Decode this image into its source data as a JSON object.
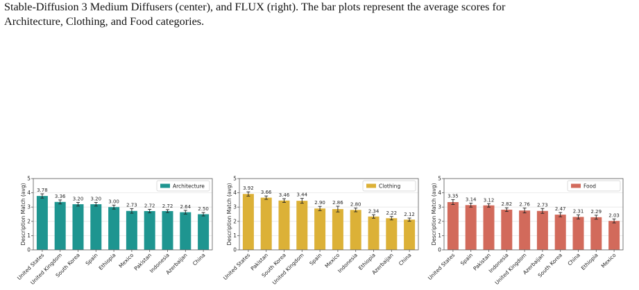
{
  "caption": {
    "line1": "Stable-Diffusion 3 Medium Diffusers (center), and FLUX (right). The bar plots represent the average scores for",
    "line2": "Architecture, Clothing, and Food categories."
  },
  "colors": {
    "architecture": "#1e9590",
    "clothing": "#dcb137",
    "food": "#d26a5b",
    "grid": "#e6e6e6",
    "axis": "#555555"
  },
  "chart_data": [
    {
      "type": "bar",
      "title": "",
      "ylabel": "Description Match (avg)",
      "xlabel": "",
      "ylim": [
        0,
        5
      ],
      "yticks": [
        0,
        1,
        2,
        3,
        4,
        5
      ],
      "grid": true,
      "legend_position": "top-right",
      "color": "#1e9590",
      "series": [
        {
          "name": "Architecture",
          "values": [
            3.78,
            3.36,
            3.2,
            3.2,
            3.0,
            2.73,
            2.72,
            2.72,
            2.64,
            2.5
          ]
        }
      ],
      "value_labels": [
        "3.78",
        "3.36",
        "3.20",
        "3.20",
        "3.00",
        "2.73",
        "2.72",
        "2.72",
        "2.64",
        "2.50"
      ],
      "errors": [
        0.15,
        0.14,
        0.13,
        0.13,
        0.14,
        0.16,
        0.12,
        0.1,
        0.13,
        0.12
      ],
      "categories": [
        "United States",
        "United Kingdom",
        "South Korea",
        "Spain",
        "Ethiopia",
        "Mexico",
        "Pakistan",
        "Indonesia",
        "Azerbaijan",
        "China"
      ]
    },
    {
      "type": "bar",
      "title": "",
      "ylabel": "Description Match (avg)",
      "xlabel": "",
      "ylim": [
        0,
        5
      ],
      "yticks": [
        0,
        1,
        2,
        3,
        4,
        5
      ],
      "grid": true,
      "legend_position": "top-right",
      "color": "#dcb137",
      "series": [
        {
          "name": "Clothing",
          "values": [
            3.92,
            3.66,
            3.46,
            3.44,
            2.9,
            2.86,
            2.8,
            2.34,
            2.22,
            2.12
          ]
        }
      ],
      "value_labels": [
        "3.92",
        "3.66",
        "3.46",
        "3.44",
        "2.90",
        "2.86",
        "2.80",
        "2.34",
        "2.22",
        "2.12"
      ],
      "errors": [
        0.15,
        0.12,
        0.13,
        0.17,
        0.15,
        0.2,
        0.13,
        0.12,
        0.12,
        0.11
      ],
      "categories": [
        "United States",
        "Pakistan",
        "South Korea",
        "United Kingdom",
        "Spain",
        "Mexico",
        "Indonesia",
        "Ethiopia",
        "Azerbaijan",
        "China"
      ]
    },
    {
      "type": "bar",
      "title": "",
      "ylabel": "Description Match (avg)",
      "xlabel": "",
      "ylim": [
        0,
        5
      ],
      "yticks": [
        0,
        1,
        2,
        3,
        4,
        5
      ],
      "grid": true,
      "legend_position": "top-right",
      "color": "#d26a5b",
      "series": [
        {
          "name": "Food",
          "values": [
            3.35,
            3.14,
            3.12,
            2.82,
            2.76,
            2.73,
            2.47,
            2.31,
            2.29,
            2.03
          ]
        }
      ],
      "value_labels": [
        "3.35",
        "3.14",
        "3.12",
        "2.82",
        "2.76",
        "2.73",
        "2.47",
        "2.31",
        "2.29",
        "2.03"
      ],
      "errors": [
        0.17,
        0.14,
        0.12,
        0.13,
        0.17,
        0.17,
        0.15,
        0.14,
        0.14,
        0.14
      ],
      "categories": [
        "United States",
        "Spain",
        "Pakistan",
        "Indonesia",
        "United Kingdom",
        "Azerbaijan",
        "South Korea",
        "China",
        "Ethiopia",
        "Mexico"
      ]
    }
  ]
}
